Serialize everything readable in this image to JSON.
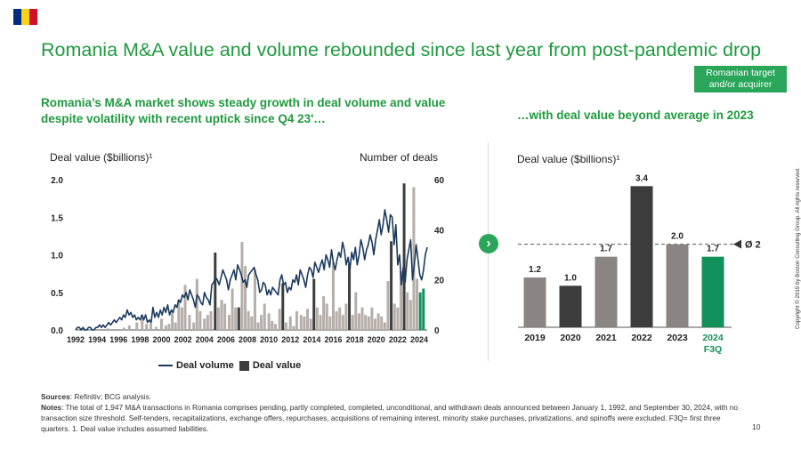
{
  "flag_colors": [
    "#002b7f",
    "#fcd116",
    "#ce1126"
  ],
  "title": "Romania M&A value and volume rebounded since last year from post-pandemic drop",
  "tag": "Romanian target and/or acquirer",
  "left": {
    "subtitle": "Romania’s M&A market shows steady growth in deal volume and value despite volatility with recent uptick since Q4 23'…",
    "left_axis_title": "Deal value ($billions)¹",
    "right_axis_title": "Number of deals"
  },
  "right": {
    "subtitle": "…with deal value beyond average in 2023",
    "axis_title": "Deal value ($billions)¹",
    "avg_label": "Ø 2"
  },
  "legend": {
    "line": "Deal volume",
    "bar": "Deal value"
  },
  "footnote": {
    "sources_label": "Sources",
    "sources_text": ": Refinitiv; BCG analysis.",
    "notes_label": "Notes",
    "notes_text": ": The total of 1,947 M&A transactions in Romania comprises pending, partly completed, completed, unconditional, and withdrawn deals announced between January 1, 1992, and September 30, 2024, with no transaction size threshold. Self-tenders, recapitalizations, exchange offers, repurchases, acquisitions of remaining interest, minority stake purchases, privatizations, and spinoffs were excluded. F3Q= first three quarters. 1. Deal value includes assumed liabilities."
  },
  "page_number": "10",
  "copyright": "Copyright © 2019 by Boston Consulting Group. All rights reserved.",
  "colors": {
    "green": "#1f9a3f",
    "navy": "#1c3a5e",
    "dark_bar": "#3c3c3c",
    "gray_bar": "#8a8582",
    "highlight": "#12915a"
  },
  "chart_data": [
    {
      "type": "bar+line",
      "x_ticks": [
        "1992",
        "1994",
        "1996",
        "1998",
        "2000",
        "2002",
        "2004",
        "2006",
        "2008",
        "2010",
        "2012",
        "2014",
        "2016",
        "2018",
        "2020",
        "2022",
        "2024"
      ],
      "y_left": {
        "ticks": [
          "0.0",
          "0.5",
          "1.0",
          "1.5",
          "2.0"
        ],
        "range": [
          0,
          2.0
        ]
      },
      "y_right": {
        "ticks": [
          "0",
          "20",
          "40",
          "60"
        ],
        "range": [
          0,
          60
        ]
      },
      "series": [
        {
          "name": "Deal volume",
          "axis": "right",
          "values": [
            0,
            1,
            1,
            0,
            1,
            0,
            0,
            1,
            1,
            0,
            0,
            1,
            1,
            2,
            1,
            2,
            1,
            2,
            3,
            2,
            3,
            4,
            3,
            4,
            5,
            4,
            6,
            5,
            8,
            6,
            7,
            5,
            6,
            4,
            5,
            4,
            6,
            4,
            6,
            3,
            4,
            3,
            9,
            5,
            7,
            5,
            8,
            6,
            9,
            7,
            10,
            6,
            8,
            7,
            10,
            9,
            12,
            11,
            14,
            13,
            15,
            12,
            16,
            14,
            12,
            9,
            14,
            13,
            11,
            10,
            15,
            13,
            12,
            10,
            18,
            19,
            21,
            20,
            18,
            21,
            24,
            22,
            20,
            16,
            20,
            22,
            24,
            20,
            26,
            24,
            22,
            19,
            20,
            17,
            22,
            23,
            24,
            25,
            22,
            20,
            15,
            16,
            19,
            18,
            14,
            16,
            14,
            17,
            16,
            15,
            14,
            20,
            22,
            18,
            19,
            15,
            17,
            16,
            20,
            19,
            22,
            18,
            24,
            22,
            20,
            17,
            22,
            25,
            24,
            21,
            27,
            25,
            23,
            26,
            28,
            24,
            30,
            28,
            25,
            32,
            27,
            24,
            28,
            31,
            29,
            35,
            32,
            26,
            29,
            24,
            31,
            28,
            33,
            26,
            30,
            36,
            33,
            28,
            32,
            34,
            38,
            35,
            30,
            36,
            40,
            44,
            38,
            42,
            48,
            44,
            39,
            46,
            45,
            34,
            42,
            26,
            30,
            18,
            25,
            19,
            28,
            32,
            36,
            20,
            26,
            34,
            28,
            22,
            20,
            24,
            30,
            33
          ]
        },
        {
          "name": "Deal value",
          "axis": "left",
          "bars": [
            {
              "x": 1992.5,
              "v": 0.01
            },
            {
              "x": 1995.0,
              "v": 0.02
            },
            {
              "x": 1996.5,
              "v": 0.03
            },
            {
              "x": 1997.0,
              "v": 0.06
            },
            {
              "x": 1997.7,
              "v": 0.1
            },
            {
              "x": 1998.2,
              "v": 0.2
            },
            {
              "x": 1998.6,
              "v": 0.08
            },
            {
              "x": 1999.0,
              "v": 0.09
            },
            {
              "x": 1999.5,
              "v": 0.04
            },
            {
              "x": 2000.0,
              "v": 0.15
            },
            {
              "x": 2000.4,
              "v": 0.06
            },
            {
              "x": 2000.7,
              "v": 0.08
            },
            {
              "x": 2001.0,
              "v": 0.25
            },
            {
              "x": 2001.3,
              "v": 0.1
            },
            {
              "x": 2001.6,
              "v": 0.4
            },
            {
              "x": 2001.9,
              "v": 0.3
            },
            {
              "x": 2002.2,
              "v": 0.6
            },
            {
              "x": 2002.6,
              "v": 0.2
            },
            {
              "x": 2003.0,
              "v": 0.1
            },
            {
              "x": 2003.3,
              "v": 0.68
            },
            {
              "x": 2003.6,
              "v": 0.25
            },
            {
              "x": 2004.0,
              "v": 0.15
            },
            {
              "x": 2004.3,
              "v": 0.2
            },
            {
              "x": 2004.6,
              "v": 0.25
            },
            {
              "x": 2005.0,
              "v": 1.03,
              "c": "dark"
            },
            {
              "x": 2005.3,
              "v": 0.3
            },
            {
              "x": 2005.6,
              "v": 0.4
            },
            {
              "x": 2005.9,
              "v": 0.35
            },
            {
              "x": 2006.3,
              "v": 0.2
            },
            {
              "x": 2006.6,
              "v": 0.55
            },
            {
              "x": 2006.9,
              "v": 0.3
            },
            {
              "x": 2007.2,
              "v": 0.3,
              "c": "dark"
            },
            {
              "x": 2007.5,
              "v": 1.17
            },
            {
              "x": 2007.8,
              "v": 0.85
            },
            {
              "x": 2008.1,
              "v": 0.25
            },
            {
              "x": 2008.4,
              "v": 0.18
            },
            {
              "x": 2008.7,
              "v": 0.8
            },
            {
              "x": 2009.0,
              "v": 0.1
            },
            {
              "x": 2009.3,
              "v": 0.2
            },
            {
              "x": 2009.6,
              "v": 0.35
            },
            {
              "x": 2010.0,
              "v": 0.22
            },
            {
              "x": 2010.3,
              "v": 0.12
            },
            {
              "x": 2010.6,
              "v": 0.08
            },
            {
              "x": 2011.0,
              "v": 0.28
            },
            {
              "x": 2011.3,
              "v": 0.62,
              "c": "dark"
            },
            {
              "x": 2011.6,
              "v": 0.1
            },
            {
              "x": 2012.0,
              "v": 0.18
            },
            {
              "x": 2012.3,
              "v": 0.05
            },
            {
              "x": 2012.6,
              "v": 0.25
            },
            {
              "x": 2013.0,
              "v": 0.2
            },
            {
              "x": 2013.3,
              "v": 0.18
            },
            {
              "x": 2013.6,
              "v": 0.28
            },
            {
              "x": 2013.9,
              "v": 0.15
            },
            {
              "x": 2014.2,
              "v": 0.68,
              "c": "dark"
            },
            {
              "x": 2014.5,
              "v": 0.3
            },
            {
              "x": 2014.8,
              "v": 0.2
            },
            {
              "x": 2015.1,
              "v": 0.45
            },
            {
              "x": 2015.4,
              "v": 0.35
            },
            {
              "x": 2015.7,
              "v": 0.18
            },
            {
              "x": 2016.0,
              "v": 0.9
            },
            {
              "x": 2016.3,
              "v": 0.25
            },
            {
              "x": 2016.6,
              "v": 0.3
            },
            {
              "x": 2016.9,
              "v": 0.2
            },
            {
              "x": 2017.2,
              "v": 0.35
            },
            {
              "x": 2017.5,
              "v": 0.88,
              "c": "dark"
            },
            {
              "x": 2017.8,
              "v": 0.2
            },
            {
              "x": 2018.1,
              "v": 0.5
            },
            {
              "x": 2018.4,
              "v": 0.22
            },
            {
              "x": 2018.7,
              "v": 0.3
            },
            {
              "x": 2019.0,
              "v": 0.2
            },
            {
              "x": 2019.3,
              "v": 0.18
            },
            {
              "x": 2019.6,
              "v": 0.3
            },
            {
              "x": 2019.9,
              "v": 0.15
            },
            {
              "x": 2020.2,
              "v": 0.22
            },
            {
              "x": 2020.5,
              "v": 0.18
            },
            {
              "x": 2020.8,
              "v": 0.1
            },
            {
              "x": 2021.1,
              "v": 0.65
            },
            {
              "x": 2021.4,
              "v": 1.18,
              "c": "dark"
            },
            {
              "x": 2021.7,
              "v": 0.35
            },
            {
              "x": 2022.0,
              "v": 0.3
            },
            {
              "x": 2022.3,
              "v": 0.78
            },
            {
              "x": 2022.6,
              "v": 1.95,
              "c": "dark"
            },
            {
              "x": 2022.9,
              "v": 0.5
            },
            {
              "x": 2023.2,
              "v": 0.4
            },
            {
              "x": 2023.5,
              "v": 1.9
            },
            {
              "x": 2023.8,
              "v": 0.68
            },
            {
              "x": 2024.1,
              "v": 0.5,
              "c": "green"
            },
            {
              "x": 2024.4,
              "v": 0.55,
              "c": "green"
            }
          ]
        }
      ],
      "legend_position": "bottom"
    },
    {
      "type": "bar",
      "categories": [
        "2019",
        "2020",
        "2021",
        "2022",
        "2023",
        "2024"
      ],
      "category_sublabels": [
        "",
        "",
        "",
        "",
        "",
        "F3Q"
      ],
      "values": [
        1.2,
        1.0,
        1.7,
        3.4,
        2.0,
        1.7
      ],
      "value_labels": [
        "1.2",
        "1.0",
        "1.7",
        "3.4",
        "2.0",
        "1.7"
      ],
      "bar_colors": [
        "#8a8582",
        "#3c3c3c",
        "#8a8582",
        "#3c3c3c",
        "#8a8582",
        "#12915a"
      ],
      "average": 2,
      "ylim": [
        0,
        3.6
      ]
    }
  ]
}
